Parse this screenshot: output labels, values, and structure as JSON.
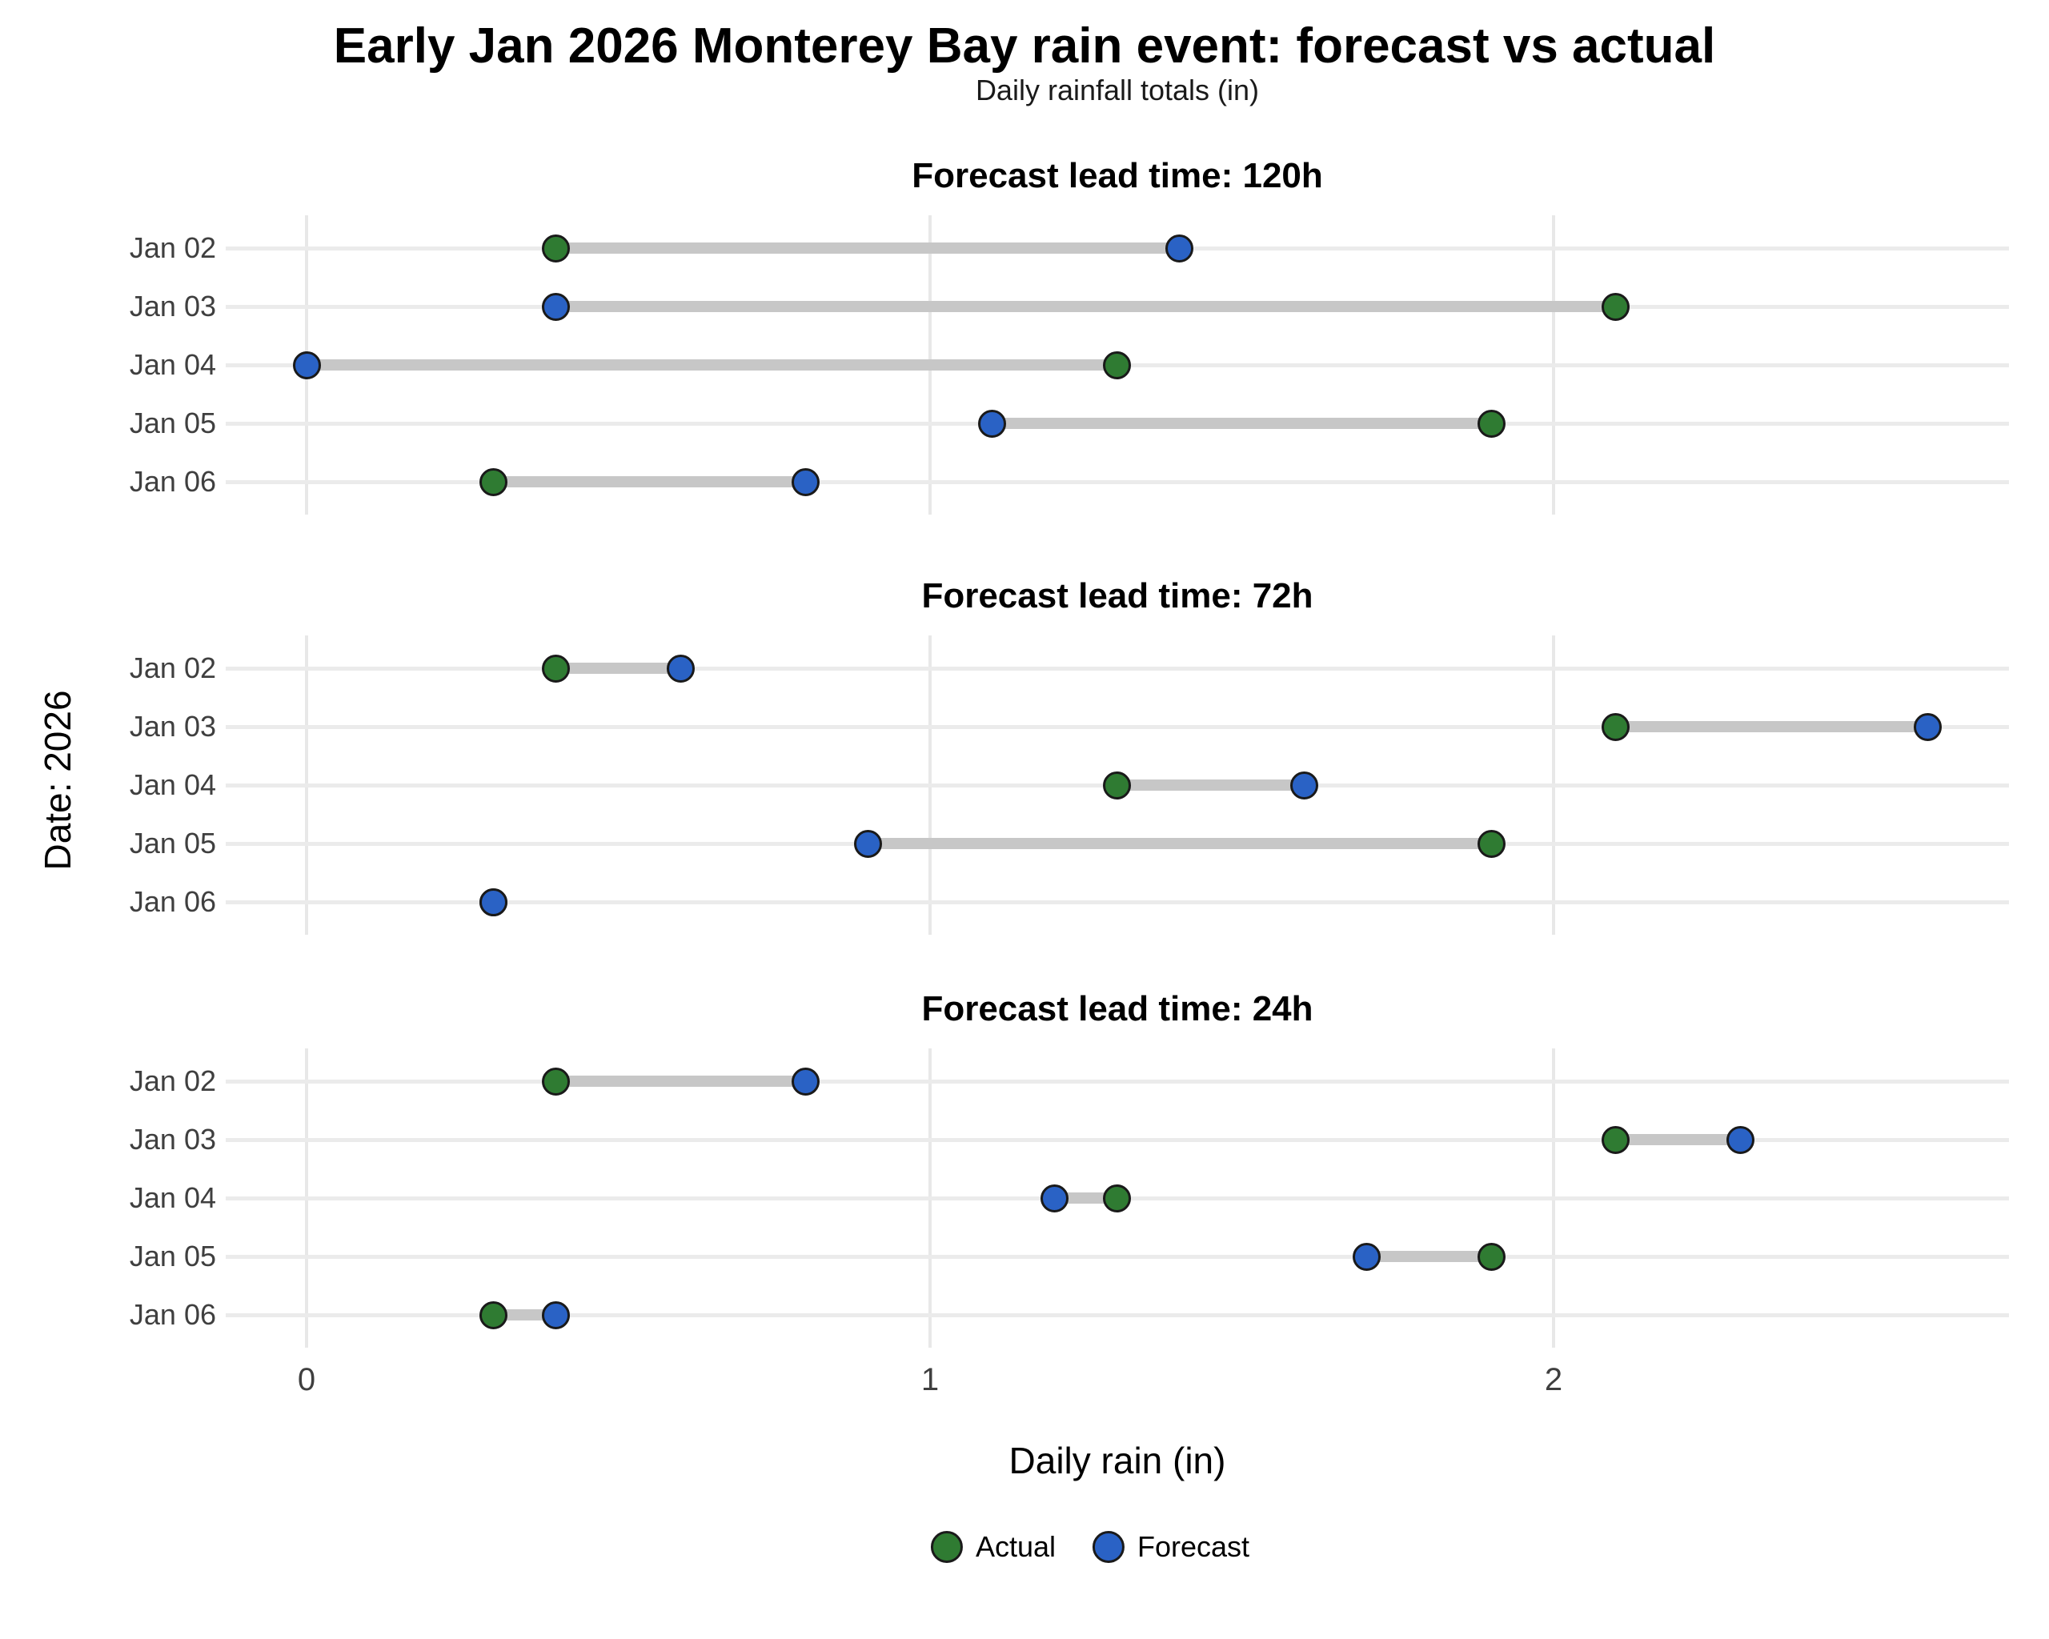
{
  "chart_data": {
    "type": "dumbbell",
    "title": "Early Jan 2026 Monterey Bay rain event: forecast vs actual",
    "subtitle": "Daily rainfall totals (in)",
    "xlabel": "Daily rain (in)",
    "ylabel": "Date: 2026",
    "x_ticks": [
      0,
      1,
      2
    ],
    "xlim": [
      -0.13,
      2.73
    ],
    "grid": "major-only",
    "legend_position": "bottom",
    "categories": [
      "Jan 02",
      "Jan 03",
      "Jan 04",
      "Jan 05",
      "Jan 06"
    ],
    "panels": [
      {
        "title": "Forecast lead time: 120h",
        "series": [
          {
            "name": "Actual",
            "values": [
              0.4,
              2.1,
              1.3,
              1.9,
              0.3
            ]
          },
          {
            "name": "Forecast",
            "values": [
              1.4,
              0.4,
              0.0,
              1.1,
              0.8
            ]
          }
        ]
      },
      {
        "title": "Forecast lead time: 72h",
        "series": [
          {
            "name": "Actual",
            "values": [
              0.4,
              2.1,
              1.3,
              1.9,
              0.3
            ]
          },
          {
            "name": "Forecast",
            "values": [
              0.6,
              2.6,
              1.6,
              0.9,
              0.3
            ]
          }
        ]
      },
      {
        "title": "Forecast lead time: 24h",
        "series": [
          {
            "name": "Actual",
            "values": [
              0.4,
              2.1,
              1.3,
              1.9,
              0.3
            ]
          },
          {
            "name": "Forecast",
            "values": [
              0.8,
              2.3,
              1.2,
              1.7,
              0.4
            ]
          }
        ]
      }
    ],
    "colors": {
      "actual": "#2f7b32",
      "forecast": "#2a62c5",
      "connector": "#c7c7c7",
      "gridline": "#e8e8e8",
      "axis_text": "#3f3f3f"
    },
    "legend": {
      "items": [
        {
          "label": "Actual",
          "color": "#2f7b32"
        },
        {
          "label": "Forecast",
          "color": "#2a62c5"
        }
      ]
    }
  }
}
